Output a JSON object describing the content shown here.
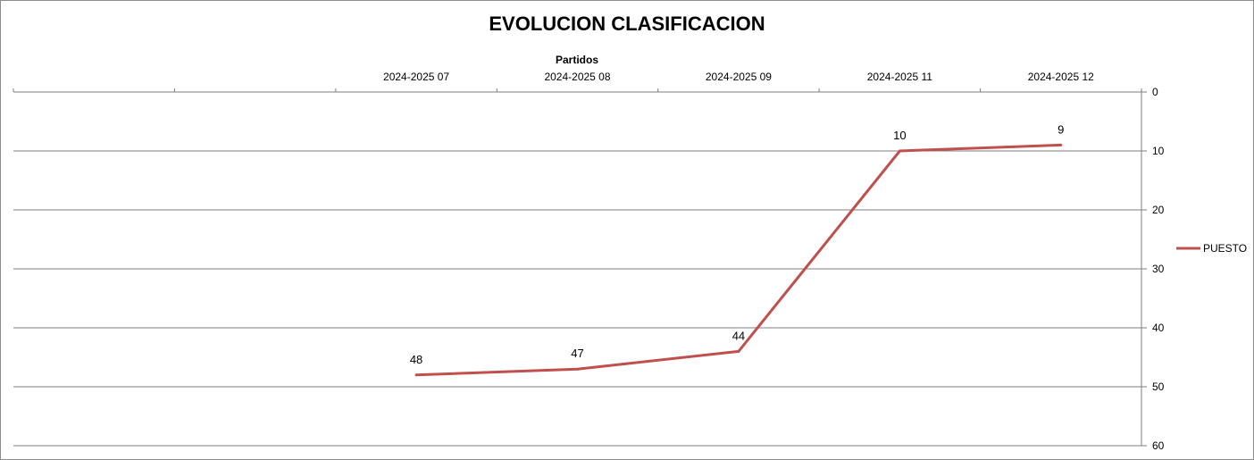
{
  "chart_data": {
    "type": "line",
    "title": "EVOLUCION CLASIFICACION",
    "xlabel": "Partidos",
    "ylabel": "",
    "categories": [
      "",
      "",
      "2024-2025 07",
      "2024-2025 08",
      "2024-2025 09",
      "2024-2025 11",
      "2024-2025 12"
    ],
    "series": [
      {
        "name": "PUESTO",
        "color": "#c0504d",
        "values": [
          null,
          null,
          48,
          47,
          44,
          10,
          9
        ]
      }
    ],
    "ylim": [
      0,
      60
    ],
    "y_reversed": true,
    "y_ticks": [
      0,
      10,
      20,
      30,
      40,
      50,
      60
    ],
    "y_axis_side": "right",
    "x_axis_side": "top",
    "grid": true,
    "data_labels": true,
    "legend_position": "right"
  }
}
